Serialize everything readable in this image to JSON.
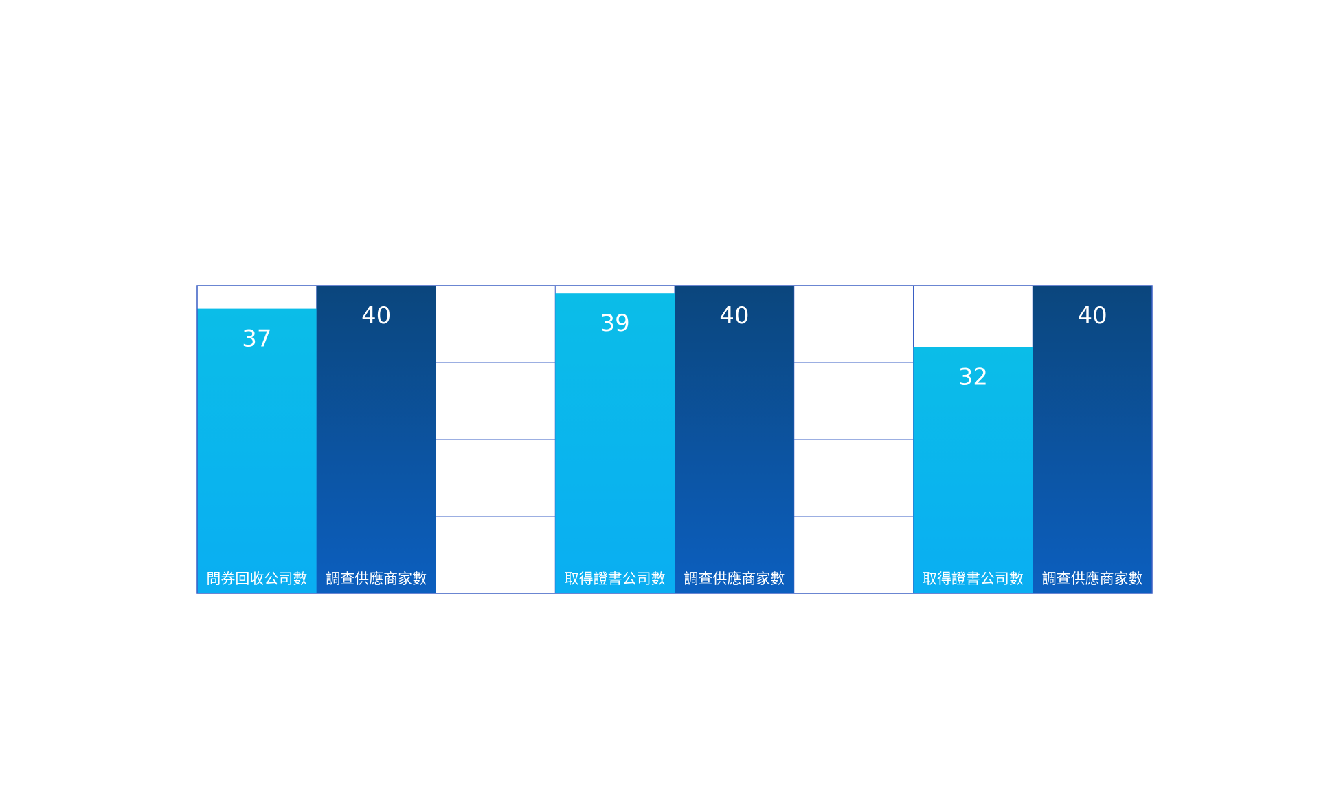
{
  "chart_data": {
    "type": "bar",
    "ylim": [
      0,
      40
    ],
    "grid": true,
    "bars": [
      {
        "category": "問券回收公司數",
        "value": 37,
        "series": "result"
      },
      {
        "category": "調查供應商家數",
        "value": 40,
        "series": "total"
      },
      {
        "category": "",
        "value": null,
        "series": "gap"
      },
      {
        "category": "取得證書公司數",
        "value": 39,
        "series": "result"
      },
      {
        "category": "調查供應商家數",
        "value": 40,
        "series": "total"
      },
      {
        "category": "",
        "value": null,
        "series": "gap"
      },
      {
        "category": "取得證書公司數",
        "value": 32,
        "series": "result"
      },
      {
        "category": "調查供應商家數",
        "value": 40,
        "series": "total"
      }
    ],
    "colors": {
      "result_top": "#0bbde8",
      "result_bottom": "#0aaef2",
      "total_top": "#0b467d",
      "total_bottom": "#0c5fbf",
      "grid": "#3a5fc4"
    }
  }
}
